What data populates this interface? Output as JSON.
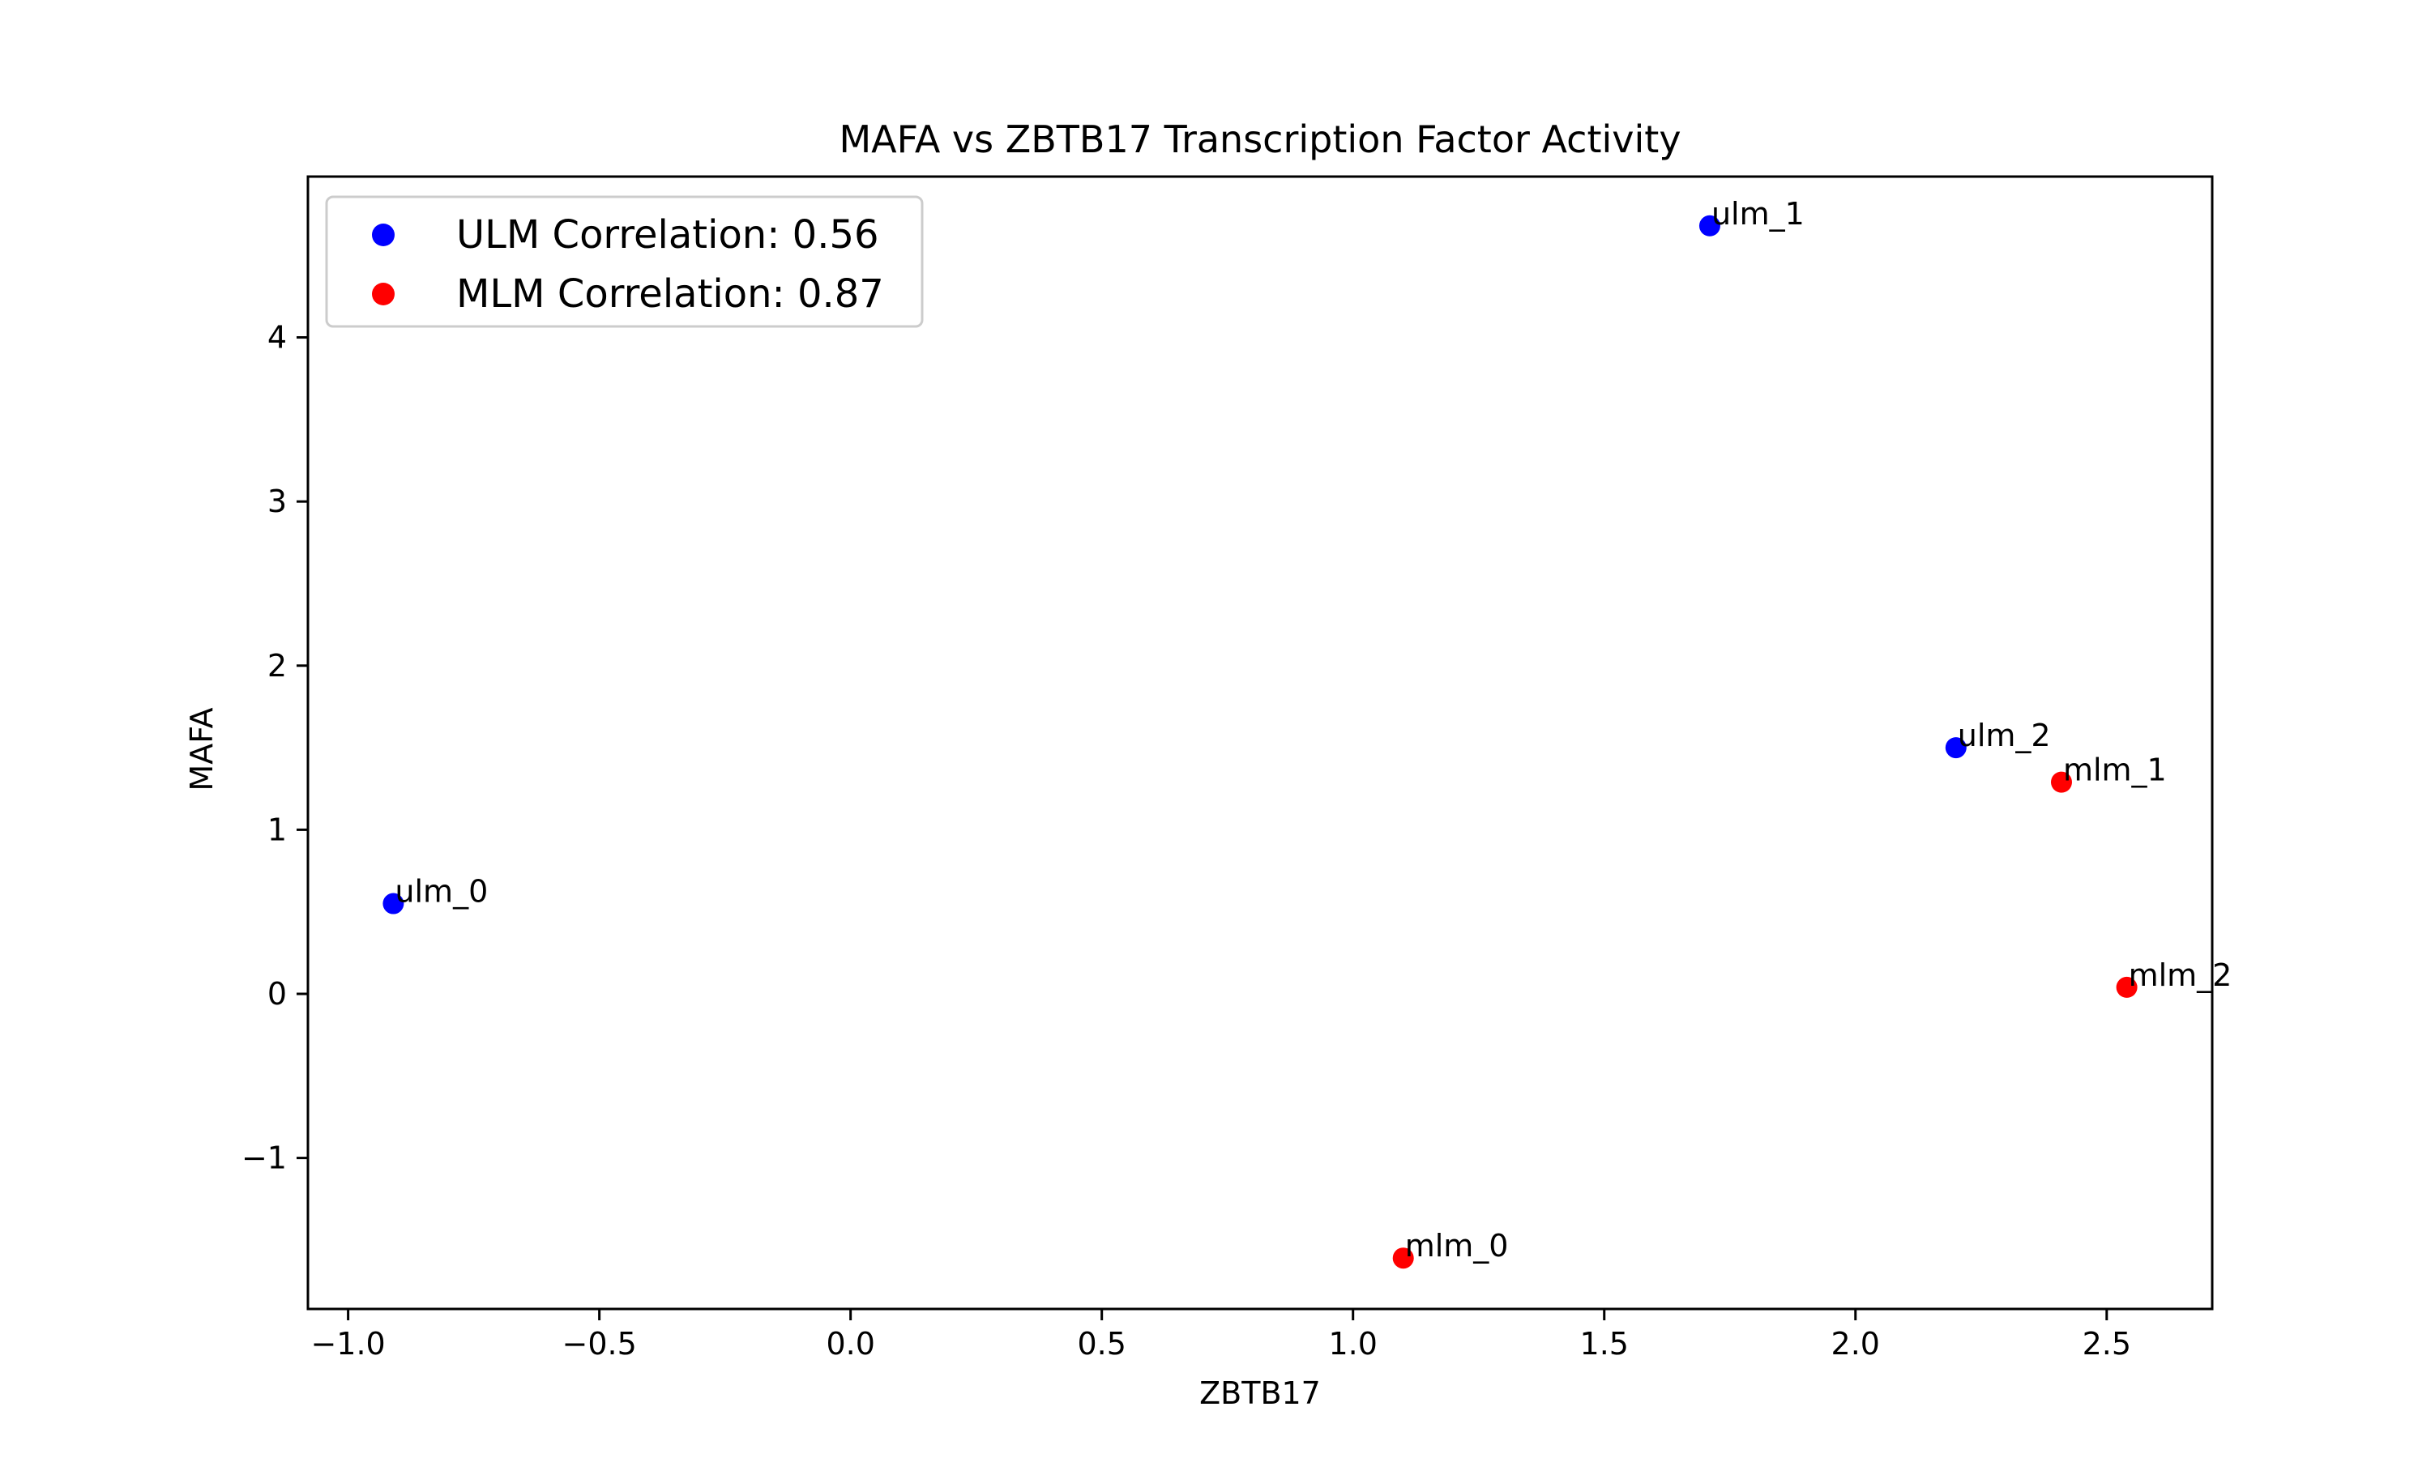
{
  "chart_data": {
    "type": "scatter",
    "title": "MAFA vs ZBTB17 Transcription Factor Activity",
    "xlabel": "ZBTB17",
    "ylabel": "MAFA",
    "xlim": [
      -1.08,
      2.71
    ],
    "ylim": [
      -1.92,
      4.98
    ],
    "x_ticks": [
      {
        "value": -1.0,
        "label": "−1.0"
      },
      {
        "value": -0.5,
        "label": "−0.5"
      },
      {
        "value": 0.0,
        "label": "0.0"
      },
      {
        "value": 0.5,
        "label": "0.5"
      },
      {
        "value": 1.0,
        "label": "1.0"
      },
      {
        "value": 1.5,
        "label": "1.5"
      },
      {
        "value": 2.0,
        "label": "2.0"
      },
      {
        "value": 2.5,
        "label": "2.5"
      }
    ],
    "y_ticks": [
      {
        "value": -1,
        "label": "−1"
      },
      {
        "value": 0,
        "label": "0"
      },
      {
        "value": 1,
        "label": "1"
      },
      {
        "value": 2,
        "label": "2"
      },
      {
        "value": 3,
        "label": "3"
      },
      {
        "value": 4,
        "label": "4"
      }
    ],
    "grid": false,
    "legend_position": "top-left",
    "series": [
      {
        "name": "ULM Correlation: 0.56",
        "color": "#0000ff",
        "points": [
          {
            "x": -0.91,
            "y": 0.55,
            "label": "ulm_0"
          },
          {
            "x": 1.71,
            "y": 4.68,
            "label": "ulm_1"
          },
          {
            "x": 2.2,
            "y": 1.5,
            "label": "ulm_2"
          }
        ]
      },
      {
        "name": "MLM Correlation: 0.87",
        "color": "#ff0000",
        "points": [
          {
            "x": 1.1,
            "y": -1.61,
            "label": "mlm_0"
          },
          {
            "x": 2.41,
            "y": 1.29,
            "label": "mlm_1"
          },
          {
            "x": 2.54,
            "y": 0.04,
            "label": "mlm_2"
          }
        ]
      }
    ]
  }
}
